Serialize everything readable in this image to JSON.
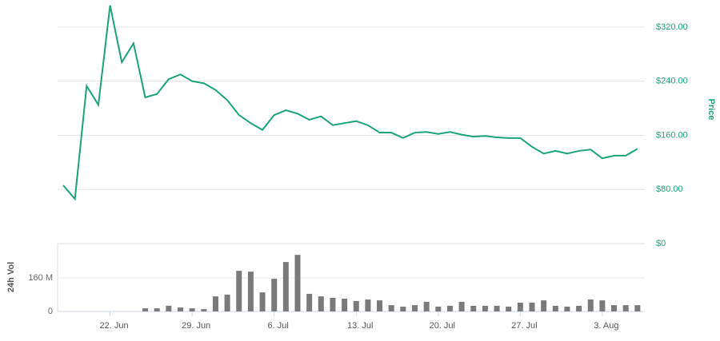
{
  "chart_data": {
    "type": "line",
    "x": [
      "18. Jun",
      "19. Jun",
      "20. Jun",
      "21. Jun",
      "22. Jun",
      "23. Jun",
      "24. Jun",
      "25. Jun",
      "26. Jun",
      "27. Jun",
      "28. Jun",
      "29. Jun",
      "30. Jun",
      "1. Jul",
      "2. Jul",
      "3. Jul",
      "4. Jul",
      "5. Jul",
      "6. Jul",
      "7. Jul",
      "8. Jul",
      "9. Jul",
      "10. Jul",
      "11. Jul",
      "12. Jul",
      "13. Jul",
      "14. Jul",
      "15. Jul",
      "16. Jul",
      "17. Jul",
      "18. Jul",
      "19. Jul",
      "20. Jul",
      "21. Jul",
      "22. Jul",
      "23. Jul",
      "24. Jul",
      "25. Jul",
      "26. Jul",
      "27. Jul",
      "28. Jul",
      "29. Jul",
      "30. Jul",
      "31. Jul",
      "1. Aug",
      "2. Aug",
      "3. Aug",
      "4. Aug",
      "5. Aug",
      "6. Aug"
    ],
    "xticks": [
      "22. Jun",
      "29. Jun",
      "6. Jul",
      "13. Jul",
      "20. Jul",
      "27. Jul",
      "3. Aug"
    ],
    "series": [
      {
        "name": "Price",
        "color": "#1aa37a",
        "axis": "y2",
        "values": [
          86,
          66,
          233,
          205,
          352,
          268,
          296,
          216,
          221,
          243,
          250,
          240,
          237,
          227,
          212,
          190,
          178,
          168,
          190,
          197,
          192,
          183,
          188,
          175,
          178,
          181,
          175,
          164,
          164,
          156,
          164,
          165,
          162,
          165,
          161,
          158,
          159,
          157,
          156,
          156,
          143,
          133,
          137,
          133,
          137,
          139,
          126,
          130,
          130,
          140
        ]
      },
      {
        "name": "24h Vol",
        "color": "#7a7a7a",
        "type": "bar",
        "values": [
          null,
          null,
          null,
          null,
          null,
          null,
          null,
          15,
          15,
          27,
          19,
          15,
          11,
          72,
          80,
          194,
          190,
          91,
          156,
          236,
          270,
          84,
          72,
          65,
          61,
          50,
          57,
          53,
          30,
          23,
          30,
          46,
          23,
          27,
          46,
          27,
          27,
          27,
          23,
          42,
          42,
          53,
          27,
          23,
          27,
          57,
          53,
          30,
          30,
          30
        ]
      }
    ],
    "ylim": [
      0,
      324
    ],
    "yticks": [
      0,
      {
        "value": 160,
        "label": "160 M"
      }
    ],
    "y2lim": [
      0,
      360
    ],
    "y2ticks": [
      {
        "value": 0,
        "label": "$0"
      },
      {
        "value": 80,
        "label": "$80.00"
      },
      {
        "value": 160,
        "label": "$160.00"
      },
      {
        "value": 240,
        "label": "$240.00"
      },
      {
        "value": 320,
        "label": "$320.00"
      }
    ],
    "grid": true
  }
}
